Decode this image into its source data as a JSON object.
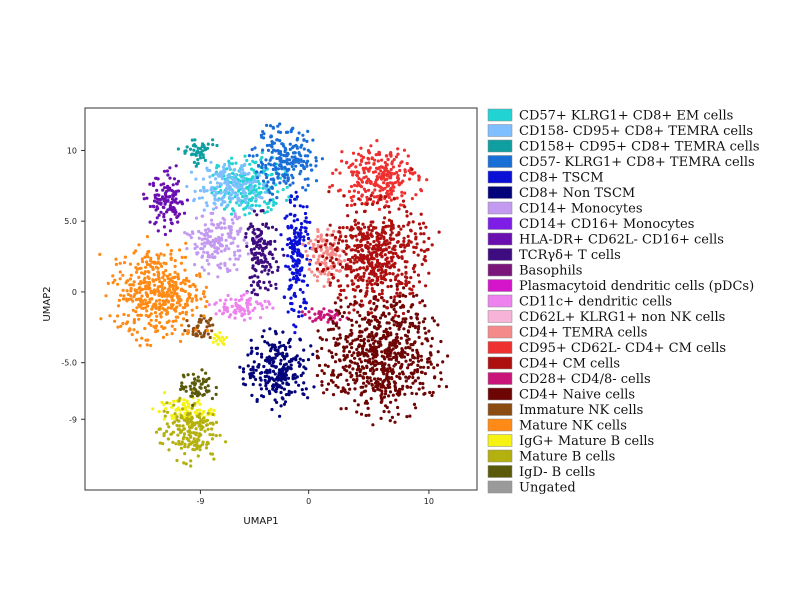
{
  "chart_data": {
    "type": "scatter",
    "xlabel": "UMAP1",
    "ylabel": "UMAP2",
    "xlim": [
      -18.6,
      14.0
    ],
    "ylim": [
      -14.0,
      13.0
    ],
    "x_ticks": [
      {
        "value": -9,
        "label": "-9"
      },
      {
        "value": 0,
        "label": "0"
      },
      {
        "value": 10,
        "label": "10"
      }
    ],
    "y_ticks": [
      {
        "value": 10,
        "label": "10"
      },
      {
        "value": 5,
        "label": "5.0"
      },
      {
        "value": 0,
        "label": "0"
      },
      {
        "value": -5,
        "label": "-5.0"
      },
      {
        "value": -9,
        "label": "-9"
      }
    ],
    "grid": false,
    "legend_position": "right",
    "series": [
      {
        "name": "CD57+ KLRG1+ CD8+ EM cells",
        "color": "#22d3d3",
        "clusters": [
          {
            "cx": -5,
            "cy": 7.5,
            "rx": 3.2,
            "ry": 2.2
          }
        ]
      },
      {
        "name": "CD158- CD95+ CD8+ TEMRA cells",
        "color": "#7fbfff",
        "clusters": [
          {
            "cx": -6.8,
            "cy": 7.4,
            "rx": 3.0,
            "ry": 1.8
          }
        ]
      },
      {
        "name": "CD158+ CD95+ CD8+ TEMRA cells",
        "color": "#0f9fa0",
        "clusters": [
          {
            "cx": -9.3,
            "cy": 10.0,
            "rx": 1.6,
            "ry": 1.0
          }
        ]
      },
      {
        "name": "CD57- KLRG1+ CD8+ TEMRA cells",
        "color": "#1a6fd6",
        "clusters": [
          {
            "cx": -2.0,
            "cy": 9.2,
            "rx": 2.8,
            "ry": 2.5
          }
        ]
      },
      {
        "name": "CD8+ TSCM",
        "color": "#0a10d6",
        "clusters": [
          {
            "cx": -1.0,
            "cy": 2.5,
            "rx": 1.2,
            "ry": 4.5
          }
        ]
      },
      {
        "name": "CD8+ Non TSCM",
        "color": "#04047a",
        "clusters": [
          {
            "cx": -2.5,
            "cy": -5.5,
            "rx": 3.0,
            "ry": 2.7
          }
        ]
      },
      {
        "name": "CD14+ Monocytes",
        "color": "#c49af0",
        "clusters": [
          {
            "cx": -7.6,
            "cy": 3.5,
            "rx": 2.5,
            "ry": 2.2
          }
        ]
      },
      {
        "name": "CD14+ CD16+ Monocytes",
        "color": "#7d1de6",
        "clusters": []
      },
      {
        "name": "HLA-DR+ CD62L- CD16+ cells",
        "color": "#6a0fb0",
        "clusters": [
          {
            "cx": -11.8,
            "cy": 6.3,
            "rx": 1.8,
            "ry": 2.2
          }
        ]
      },
      {
        "name": "TCRγδ+ T cells",
        "color": "#3d0c7e",
        "clusters": [
          {
            "cx": -4.0,
            "cy": 2.5,
            "rx": 1.5,
            "ry": 3.0
          }
        ]
      },
      {
        "name": "Basophils",
        "color": "#7a157a",
        "clusters": []
      },
      {
        "name": "Plasmacytoid dendritic cells (pDCs)",
        "color": "#d515c9",
        "clusters": []
      },
      {
        "name": "CD11c+ dendritic cells",
        "color": "#ee82ee",
        "clusters": [
          {
            "cx": -5.5,
            "cy": -1.0,
            "rx": 2.5,
            "ry": 1.0
          }
        ]
      },
      {
        "name": "CD62L+ KLRG1+ non NK cells",
        "color": "#f7b3d8",
        "clusters": []
      },
      {
        "name": "CD4+ TEMRA cells",
        "color": "#f48a8a",
        "clusters": [
          {
            "cx": 1.5,
            "cy": 2.5,
            "rx": 1.8,
            "ry": 2.0
          }
        ]
      },
      {
        "name": "CD95+ CD62L- CD4+ CM cells",
        "color": "#ef3030",
        "clusters": [
          {
            "cx": 5.8,
            "cy": 8.2,
            "rx": 3.6,
            "ry": 2.3
          }
        ]
      },
      {
        "name": "CD4+ CM cells",
        "color": "#ae0f0f",
        "clusters": [
          {
            "cx": 5.5,
            "cy": 2.5,
            "rx": 4.5,
            "ry": 4.0
          }
        ]
      },
      {
        "name": "CD28+ CD4/8- cells",
        "color": "#c9157a",
        "clusters": [
          {
            "cx": 1.2,
            "cy": -1.7,
            "rx": 2.0,
            "ry": 0.6
          }
        ]
      },
      {
        "name": "CD4+ Naive cells",
        "color": "#6e0505",
        "clusters": [
          {
            "cx": 6.0,
            "cy": -4.5,
            "rx": 5.0,
            "ry": 4.5
          }
        ]
      },
      {
        "name": "Immature NK cells",
        "color": "#8b4c12",
        "clusters": [
          {
            "cx": -9.0,
            "cy": -2.6,
            "rx": 1.2,
            "ry": 1.0
          }
        ]
      },
      {
        "name": "Mature NK cells",
        "color": "#ff8a15",
        "clusters": [
          {
            "cx": -12.5,
            "cy": 0.0,
            "rx": 4.0,
            "ry": 3.5
          }
        ]
      },
      {
        "name": "IgG+ Mature B cells",
        "color": "#f5f214",
        "clusters": [
          {
            "cx": -7.5,
            "cy": -3.3,
            "rx": 0.8,
            "ry": 0.6
          },
          {
            "cx": -10.2,
            "cy": -8.4,
            "rx": 2.5,
            "ry": 1.0
          }
        ]
      },
      {
        "name": "Mature B cells",
        "color": "#b4b00f",
        "clusters": [
          {
            "cx": -10.0,
            "cy": -9.8,
            "rx": 2.6,
            "ry": 2.2
          }
        ]
      },
      {
        "name": "IgD- B cells",
        "color": "#5a5a0a",
        "clusters": [
          {
            "cx": -9.3,
            "cy": -6.8,
            "rx": 1.5,
            "ry": 1.2
          }
        ]
      },
      {
        "name": "Ungated",
        "color": "#9a9a9a",
        "clusters": []
      }
    ]
  }
}
